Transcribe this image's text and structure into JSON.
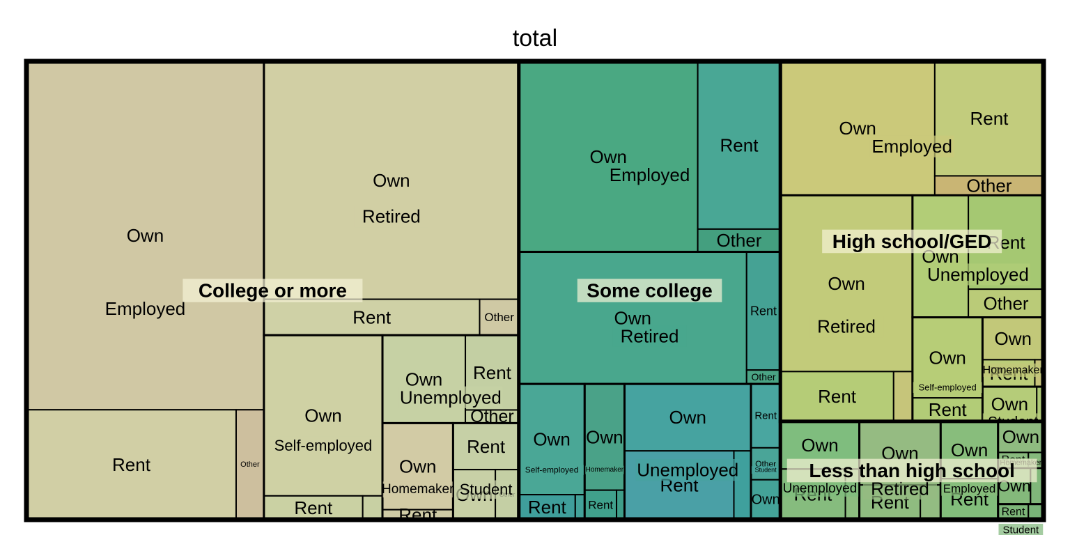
{
  "chart_data": {
    "type": "treemap",
    "title": "total",
    "hierarchy": [
      "education",
      "employment",
      "housing"
    ],
    "groups": [
      {
        "name": "College or more",
        "color": "#cfc8a4",
        "children": [
          {
            "name": "Employed",
            "color": "#d0c8a4",
            "children": [
              {
                "name": "Own",
                "value": 35.2,
                "color": "#d0c8a4"
              },
              {
                "name": "Rent",
                "value": 9.8,
                "color": "#d1cfa5"
              },
              {
                "name": "Other",
                "value": 1.3,
                "color": "#cdbf9e"
              }
            ]
          },
          {
            "name": "Retired",
            "color": "#d1cfa4",
            "children": [
              {
                "name": "Own",
                "value": 25.8,
                "color": "#d1cfa4"
              },
              {
                "name": "Rent",
                "value": 3.3,
                "color": "#cfd1a6"
              },
              {
                "name": "Other",
                "value": 0.6,
                "color": "#cfc9a4"
              }
            ]
          },
          {
            "name": "Self-employed",
            "color": "#cfd1a4",
            "children": [
              {
                "name": "Own",
                "value": 8.1,
                "color": "#cfd1a4"
              },
              {
                "name": "Rent",
                "value": 1.0,
                "color": "#cad1a3"
              },
              {
                "name": "Other",
                "value": 0.2,
                "color": "#c8d0a3"
              }
            ]
          },
          {
            "name": "Unemployed",
            "color": "#c6d1a4",
            "children": [
              {
                "name": "Own",
                "value": 3.1,
                "color": "#c6d1a4"
              },
              {
                "name": "Rent",
                "value": 1.7,
                "color": "#c3cfa3"
              },
              {
                "name": "Other",
                "value": 0.3,
                "color": "#c5d1a4"
              }
            ]
          },
          {
            "name": "Homemaker",
            "color": "#d2cba5",
            "children": [
              {
                "name": "Own",
                "value": 2.6,
                "color": "#d2cba5"
              },
              {
                "name": "Rent",
                "value": 0.3,
                "color": "#cfcba5"
              }
            ]
          },
          {
            "name": "Student",
            "color": "#c6d0a6",
            "children": [
              {
                "name": "Rent",
                "value": 1.3,
                "color": "#c6d0a6"
              },
              {
                "name": "Own",
                "value": 0.9,
                "color": "#c8d0a6"
              },
              {
                "name": "Other",
                "value": 0.5,
                "color": "#c4cfa4"
              }
            ]
          }
        ]
      },
      {
        "name": "Some college",
        "color": "#4aa282",
        "children": [
          {
            "name": "Employed",
            "color": "#4aa882",
            "children": [
              {
                "name": "Own",
                "value": 14.5,
                "color": "#4aa882"
              },
              {
                "name": "Rent",
                "value": 5.9,
                "color": "#49a795"
              },
              {
                "name": "Other",
                "value": 0.8,
                "color": "#449f7f"
              }
            ]
          },
          {
            "name": "Retired",
            "color": "#49a78d",
            "children": [
              {
                "name": "Own",
                "value": 12.8,
                "color": "#49a78d"
              },
              {
                "name": "Rent",
                "value": 1.7,
                "color": "#45a294"
              },
              {
                "name": "Other",
                "value": 0.2,
                "color": "#4aa384"
              }
            ]
          },
          {
            "name": "Self-employed",
            "color": "#4aa796",
            "children": [
              {
                "name": "Own",
                "value": 3.1,
                "color": "#4aa796"
              },
              {
                "name": "Rent",
                "value": 0.6,
                "color": "#3f9e9b"
              },
              {
                "name": "Other",
                "value": 0.1,
                "color": "#43a299"
              }
            ]
          },
          {
            "name": "Homemaker",
            "color": "#4aa288",
            "children": [
              {
                "name": "Own",
                "value": 1.8,
                "color": "#4aa288"
              },
              {
                "name": "Rent",
                "value": 0.4,
                "color": "#40a18c"
              },
              {
                "name": "Other",
                "value": 0.1,
                "color": "#3f9e89"
              }
            ]
          },
          {
            "name": "Unemployed",
            "color": "#46a3a0",
            "children": [
              {
                "name": "Own",
                "value": 3.6,
                "color": "#46a3a0"
              },
              {
                "name": "Rent",
                "value": 3.2,
                "color": "#4aa0a6"
              },
              {
                "name": "Other",
                "value": 0.5,
                "color": "#3fa09d"
              }
            ]
          },
          {
            "name": "Student",
            "color": "#49a6a0",
            "children": [
              {
                "name": "Rent",
                "value": 0.8,
                "color": "#49a6a0"
              },
              {
                "name": "Other",
                "value": 0.4,
                "color": "#4aa598"
              },
              {
                "name": "Own",
                "value": 0.5,
                "color": "#44a398"
              }
            ]
          }
        ]
      },
      {
        "name": "High school/GED",
        "color": "#c6cd7a",
        "children": [
          {
            "name": "Employed",
            "color": "#cbc97a",
            "children": [
              {
                "name": "Own",
                "value": 8.8,
                "color": "#cbc97a"
              },
              {
                "name": "Rent",
                "value": 5.3,
                "color": "#c2cc7d"
              },
              {
                "name": "Other",
                "value": 0.9,
                "color": "#c9b574"
              }
            ]
          },
          {
            "name": "Retired",
            "color": "#c2cb7a",
            "children": [
              {
                "name": "Own",
                "value": 9.9,
                "color": "#c2cb7a"
              },
              {
                "name": "Rent",
                "value": 2.4,
                "color": "#b5cc77"
              },
              {
                "name": "Other",
                "value": 0.4,
                "color": "#c6c57a"
              }
            ]
          },
          {
            "name": "Unemployed",
            "color": "#b2cd77",
            "children": [
              {
                "name": "Own",
                "value": 2.9,
                "color": "#b2cd77"
              },
              {
                "name": "Rent",
                "value": 3.0,
                "color": "#a5c872"
              },
              {
                "name": "Other",
                "value": 0.9,
                "color": "#bacb78"
              }
            ]
          },
          {
            "name": "Self-employed",
            "color": "#b7cd77",
            "children": [
              {
                "name": "Own",
                "value": 2.4,
                "color": "#b7cd77"
              },
              {
                "name": "Rent",
                "value": 0.7,
                "color": "#b2cc77"
              }
            ]
          },
          {
            "name": "Homemaker",
            "color": "#c2c879",
            "children": [
              {
                "name": "Own",
                "value": 1.1,
                "color": "#c2c879"
              },
              {
                "name": "Rent",
                "value": 0.6,
                "color": "#bccd79"
              },
              {
                "name": "Other",
                "value": 0.1,
                "color": "#c7c37a"
              }
            ]
          },
          {
            "name": "Student",
            "color": "#b5cc79",
            "children": [
              {
                "name": "Own",
                "value": 0.8,
                "color": "#b5cc79"
              },
              {
                "name": "Rent",
                "value": 0.1,
                "color": "#aec976"
              }
            ]
          }
        ]
      },
      {
        "name": "Less than high school",
        "color": "#88bd7c",
        "children": [
          {
            "name": "Unemployed",
            "color": "#7fbd7e",
            "children": [
              {
                "name": "Own",
                "value": 1.6,
                "color": "#7fbd7e"
              },
              {
                "name": "Rent",
                "value": 1.4,
                "color": "#86bc7e"
              },
              {
                "name": "Other",
                "value": 0.3,
                "color": "#8cbd7f"
              }
            ]
          },
          {
            "name": "Retired",
            "color": "#95bb82",
            "children": [
              {
                "name": "Own",
                "value": 2.2,
                "color": "#95bb82"
              },
              {
                "name": "Rent",
                "value": 0.9,
                "color": "#8fbc80"
              },
              {
                "name": "Other",
                "value": 0.3,
                "color": "#93bc82"
              }
            ]
          },
          {
            "name": "Employed",
            "color": "#88bd7c",
            "children": [
              {
                "name": "Own",
                "value": 1.4,
                "color": "#88bd7c"
              },
              {
                "name": "Rent",
                "value": 1.0,
                "color": "#82bd7b"
              }
            ]
          },
          {
            "name": "Homemaker",
            "color": "#8fbb80",
            "children": [
              {
                "name": "Own",
                "value": 0.6,
                "color": "#8fbb80"
              },
              {
                "name": "Rent",
                "value": 0.2,
                "color": "#89ba7e"
              },
              {
                "name": "Other",
                "value": 0.1,
                "color": "#85b97c"
              }
            ]
          },
          {
            "name": "Self-employed",
            "color": "#84b97b",
            "children": [
              {
                "name": "Own",
                "value": 0.5,
                "color": "#84b97b"
              },
              {
                "name": "Rent",
                "value": 0.2,
                "color": "#80b77a"
              }
            ]
          },
          {
            "name": "Student",
            "color": "#7db679",
            "children": [
              {
                "name": "Rent",
                "value": 0.2,
                "color": "#7db679"
              },
              {
                "name": "Other",
                "value": 0.1,
                "color": "#79b478"
              }
            ]
          }
        ]
      }
    ]
  }
}
